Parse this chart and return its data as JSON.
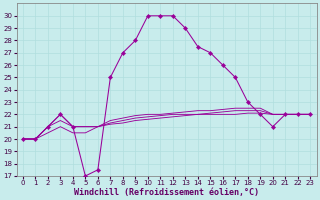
{
  "title": "",
  "xlabel": "Windchill (Refroidissement éolien,°C)",
  "background_color": "#c8ecec",
  "grid_color": "#b0dede",
  "line_color": "#990099",
  "x_main": [
    0,
    1,
    2,
    3,
    4,
    5,
    6,
    7,
    8,
    9,
    10,
    11,
    12,
    13,
    14,
    15,
    16,
    17,
    18,
    19,
    20,
    21,
    22,
    23
  ],
  "y_main": [
    20,
    20,
    21,
    22,
    21,
    17,
    17.5,
    25,
    27,
    28,
    30,
    30,
    30,
    29,
    27.5,
    27,
    26,
    25,
    23,
    22,
    21,
    22,
    22,
    22
  ],
  "line2_x": [
    0,
    1,
    2,
    3,
    4,
    5,
    6,
    7,
    8,
    9,
    10,
    11,
    12,
    13,
    14,
    15,
    16,
    17,
    18,
    19,
    20,
    21,
    22,
    23
  ],
  "line2_y": [
    20,
    20,
    21,
    22,
    21,
    21,
    21,
    21.5,
    21.7,
    21.9,
    22,
    22,
    22.1,
    22.2,
    22.3,
    22.3,
    22.4,
    22.5,
    22.5,
    22.5,
    22,
    22,
    22,
    22
  ],
  "line3_x": [
    0,
    1,
    2,
    3,
    4,
    5,
    6,
    7,
    8,
    9,
    10,
    11,
    12,
    13,
    14,
    15,
    16,
    17,
    18,
    19,
    20,
    21,
    22,
    23
  ],
  "line3_y": [
    20,
    20,
    21,
    21.5,
    21,
    21,
    21,
    21.3,
    21.5,
    21.7,
    21.8,
    21.9,
    22,
    22,
    22,
    22.1,
    22.2,
    22.3,
    22.3,
    22.3,
    22,
    22,
    22,
    22
  ],
  "line4_x": [
    0,
    1,
    2,
    3,
    4,
    5,
    6,
    7,
    8,
    9,
    10,
    11,
    12,
    13,
    14,
    15,
    16,
    17,
    18,
    19,
    20,
    21,
    22,
    23
  ],
  "line4_y": [
    20,
    20,
    20.5,
    21,
    20.5,
    20.5,
    21,
    21.2,
    21.3,
    21.5,
    21.6,
    21.7,
    21.8,
    21.9,
    22,
    22,
    22,
    22,
    22.1,
    22.1,
    22,
    22,
    22,
    22
  ],
  "ylim": [
    17,
    31
  ],
  "yticks": [
    17,
    18,
    19,
    20,
    21,
    22,
    23,
    24,
    25,
    26,
    27,
    28,
    29,
    30
  ],
  "xtick_labels": [
    "0",
    "1",
    "2",
    "3",
    "4",
    "5",
    "6",
    "7",
    "8",
    "9",
    "10",
    "11",
    "12",
    "13",
    "14",
    "15",
    "16",
    "17",
    "18",
    "19",
    "20",
    "21",
    "22",
    "23"
  ],
  "tick_fontsize": 5.0,
  "xlabel_fontsize": 6.0,
  "marker": "D",
  "marker_size": 2.2,
  "line_width": 0.75
}
